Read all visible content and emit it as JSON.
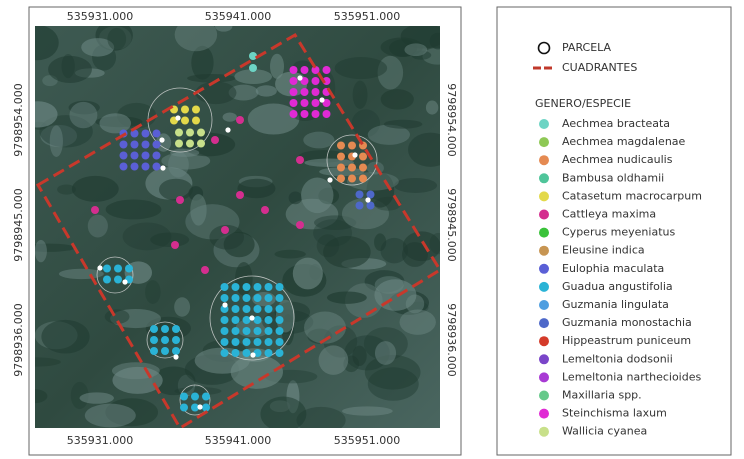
{
  "map": {
    "x_labels_top": [
      "535931.000",
      "535941.000",
      "535951.000"
    ],
    "x_labels_bottom": [
      "535931.000",
      "535941.000",
      "535951.000"
    ],
    "y_labels_left": [
      "9798954.000",
      "9798945.000",
      "9798936.000"
    ],
    "y_labels_right": [
      "9798954.000",
      "9798945.000",
      "9798936.000"
    ]
  },
  "legend": {
    "parcela": "PARCELA",
    "cuadrantes": "CUADRANTES",
    "heading": "GENERO/ESPECIE",
    "species": [
      {
        "name": "Aechmea bracteata",
        "color": "#6dd4c4"
      },
      {
        "name": "Aechmea magdalenae",
        "color": "#8ec855"
      },
      {
        "name": "Aechmea nudicaulis",
        "color": "#e58a52"
      },
      {
        "name": "Bambusa oldhamii",
        "color": "#4fc59a"
      },
      {
        "name": "Catasetum macrocarpum",
        "color": "#e3d94a"
      },
      {
        "name": "Cattleya maxima",
        "color": "#d42e8f"
      },
      {
        "name": "Cyperus meyeniatus",
        "color": "#3ac23a"
      },
      {
        "name": "Eleusine indica",
        "color": "#c79552"
      },
      {
        "name": "Eulophia maculata",
        "color": "#5a5fd6"
      },
      {
        "name": "Guadua angustifolia",
        "color": "#2ab3d6"
      },
      {
        "name": "Guzmania lingulata",
        "color": "#4e9ee0"
      },
      {
        "name": "Guzmania monostachia",
        "color": "#4e68c9"
      },
      {
        "name": "Hippeastrum puniceum",
        "color": "#d43b2a"
      },
      {
        "name": "Lemeltonia dodsonii",
        "color": "#7a45c9"
      },
      {
        "name": "Lemeltonia narthecioides",
        "color": "#a83ad4"
      },
      {
        "name": "Maxillaria spp.",
        "color": "#66c98a"
      },
      {
        "name": "Steinchisma laxum",
        "color": "#e02ad4"
      },
      {
        "name": "Wallicia cyanea",
        "color": "#c8e08a"
      }
    ]
  }
}
